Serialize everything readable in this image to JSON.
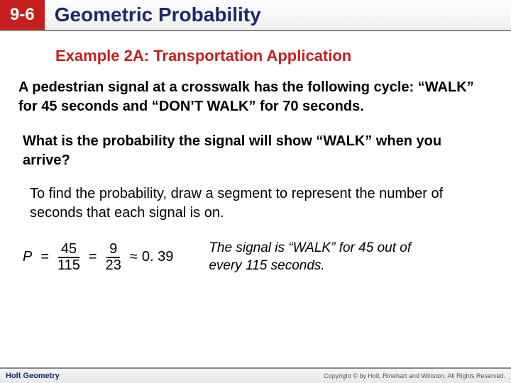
{
  "header": {
    "badge": "9-6",
    "title": "Geometric Probability"
  },
  "example_title": "Example 2A: Transportation Application",
  "problem": "A pedestrian signal at a crosswalk has the following cycle: “WALK” for 45 seconds and “DON’T WALK” for 70 seconds.",
  "question": "What is the probability the signal will show “WALK” when you arrive?",
  "explain": "To find the probability, draw a segment to represent the number of seconds that each signal is on.",
  "equation": {
    "P": "P",
    "eq": "=",
    "frac1_num": "45",
    "frac1_den": "115",
    "frac2_num": "9",
    "frac2_den": "23",
    "approx": "≈",
    "result": "0. 39"
  },
  "caption": "The signal is “WALK” for 45 out of every 115 seconds.",
  "footer": {
    "left": "Holt Geometry",
    "right": "Copyright © by Holt, Rinehart and Winston. All Rights Reserved."
  },
  "colors": {
    "accent_red": "#c41e1e",
    "accent_blue": "#1a2a6b",
    "bg": "#ffffff"
  }
}
